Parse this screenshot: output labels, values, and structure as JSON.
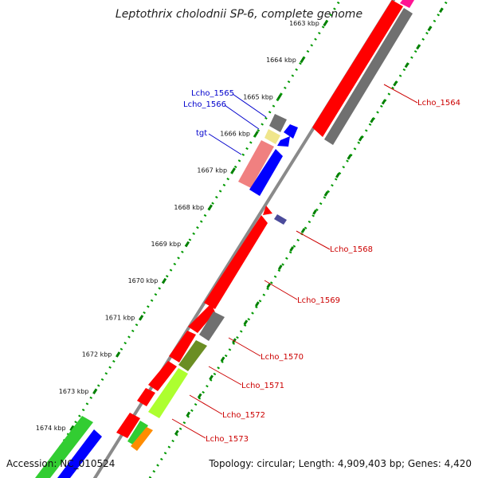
{
  "title": "Leptothrix cholodnii SP-6, complete genome",
  "footer": {
    "accession": "Accession: NC_010524",
    "summary": "Topology: circular; Length: 4,909,403 bp; Genes: 4,420"
  },
  "colors": {
    "backbone": "#8a8a8a",
    "tick_major": "#008000",
    "tick_minor": "#009900",
    "red": "#ff0000",
    "gray": "#707070",
    "blue": "#0000ff",
    "pink": "#f08080",
    "yellow": "#f0e68c",
    "navy": "#4b4b9b",
    "olive": "#6b8e23",
    "lime": "#adff2f",
    "green": "#32cd32",
    "orange": "#ff8c00",
    "magenta": "#ff1493",
    "label_blue": "#0000cc",
    "label_red": "#cc0000"
  },
  "kbp_ticks": [
    "1663 kbp",
    "1664 kbp",
    "1665 kbp",
    "1666 kbp",
    "1667 kbp",
    "1668 kbp",
    "1669 kbp",
    "1670 kbp",
    "1671 kbp",
    "1672 kbp",
    "1673 kbp",
    "1674 kbp"
  ],
  "gene_labels_left": [
    "Lcho_1565",
    "Lcho_1566",
    "tgt"
  ],
  "gene_labels_right": [
    "Lcho_1564",
    "Lcho_1568",
    "Lcho_1569",
    "Lcho_1570",
    "Lcho_1571",
    "Lcho_1572",
    "Lcho_1573"
  ],
  "genes_outer": [
    {
      "name": "Lcho_1564",
      "color": "red"
    },
    {
      "name": "Lcho_1564-gray",
      "color": "gray"
    },
    {
      "name": "top-magenta",
      "color": "magenta"
    },
    {
      "name": "Lcho_1568",
      "color": "navy"
    }
  ],
  "genes_inner": [
    {
      "name": "Lcho_1565",
      "color": "gray"
    },
    {
      "name": "Lcho_1566",
      "color": "yellow"
    },
    {
      "name": "tgt",
      "color": "pink"
    },
    {
      "name": "Lcho_1569",
      "color": "red"
    },
    {
      "name": "Lcho_1570",
      "color": "gray"
    },
    {
      "name": "Lcho_1571",
      "color": "olive"
    },
    {
      "name": "Lcho_1572",
      "color": "lime"
    },
    {
      "name": "Lcho_1573",
      "color": "orange"
    }
  ]
}
